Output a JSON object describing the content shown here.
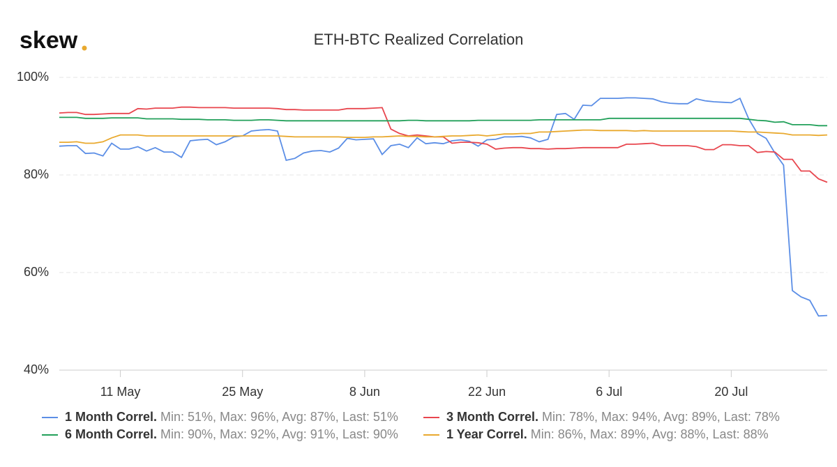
{
  "brand": "skew",
  "chart_data": {
    "type": "line",
    "title": "ETH-BTC Realized Correlation",
    "categories": [
      null,
      null,
      null,
      null,
      null,
      null,
      null,
      "11 May",
      null,
      null,
      null,
      null,
      null,
      null,
      null,
      null,
      null,
      null,
      null,
      null,
      null,
      "25 May",
      null,
      null,
      null,
      null,
      null,
      null,
      null,
      null,
      null,
      null,
      null,
      null,
      null,
      "8 Jun",
      null,
      null,
      null,
      null,
      null,
      null,
      null,
      null,
      null,
      null,
      null,
      null,
      null,
      "22 Jun",
      null,
      null,
      null,
      null,
      null,
      null,
      null,
      null,
      null,
      null,
      null,
      null,
      null,
      "6 Jul",
      null,
      null,
      null,
      null,
      null,
      null,
      null,
      null,
      null,
      null,
      null,
      null,
      null,
      "20 Jul",
      null,
      null,
      null,
      null,
      null,
      null,
      null,
      null,
      null,
      null,
      null
    ],
    "ylim": [
      40,
      100
    ],
    "yticks": [
      {
        "value": 40,
        "label": "40%"
      },
      {
        "value": 60,
        "label": "60%"
      },
      {
        "value": 80,
        "label": "80%"
      },
      {
        "value": 100,
        "label": "100%"
      }
    ],
    "grid": true,
    "series": [
      {
        "name": "1 Month Correl.",
        "legend_note": "Min: 51%, Max: 96%, Avg: 87%, Last: 51%",
        "color": "#5b8ee6",
        "values": [
          85.9,
          86,
          86,
          84.4,
          84.5,
          83.9,
          86.5,
          85.3,
          85.3,
          85.8,
          84.9,
          85.6,
          84.7,
          84.7,
          83.6,
          87,
          87.2,
          87.3,
          86.2,
          86.8,
          87.8,
          88,
          89,
          89.2,
          89.3,
          89,
          83,
          83.4,
          84.5,
          84.9,
          85,
          84.7,
          85.5,
          87.5,
          87.2,
          87.3,
          87.4,
          84.2,
          86,
          86.3,
          85.6,
          87.6,
          86.4,
          86.6,
          86.4,
          87,
          87.2,
          86.9,
          85.9,
          87.2,
          87.3,
          87.8,
          87.8,
          87.9,
          87.6,
          86.8,
          87.3,
          92.4,
          92.6,
          91.4,
          94.3,
          94.2,
          95.7,
          95.7,
          95.7,
          95.8,
          95.8,
          95.7,
          95.6,
          95,
          94.7,
          94.6,
          94.6,
          95.6,
          95.2,
          95,
          94.9,
          94.8,
          95.7,
          91.5,
          88.5,
          87.5,
          84.5,
          82,
          56.3,
          55,
          54.3,
          51.1,
          51.2
        ]
      },
      {
        "name": "3 Month Correl.",
        "legend_note": "Min: 78%, Max: 94%, Avg: 89%, Last: 78%",
        "color": "#e8464e",
        "values": [
          92.7,
          92.8,
          92.8,
          92.4,
          92.4,
          92.5,
          92.6,
          92.6,
          92.6,
          93.6,
          93.5,
          93.7,
          93.7,
          93.7,
          93.9,
          93.9,
          93.8,
          93.8,
          93.8,
          93.8,
          93.7,
          93.7,
          93.7,
          93.7,
          93.7,
          93.6,
          93.4,
          93.4,
          93.3,
          93.3,
          93.3,
          93.3,
          93.3,
          93.6,
          93.6,
          93.6,
          93.7,
          93.8,
          89.4,
          88.5,
          88,
          88.2,
          88,
          87.8,
          87.8,
          86.5,
          86.7,
          86.7,
          86.6,
          86.3,
          85.3,
          85.5,
          85.6,
          85.6,
          85.4,
          85.4,
          85.3,
          85.4,
          85.4,
          85.5,
          85.6,
          85.6,
          85.6,
          85.6,
          85.6,
          86.3,
          86.3,
          86.4,
          86.5,
          86,
          86,
          86,
          86,
          85.8,
          85.2,
          85.2,
          86.2,
          86.2,
          86,
          86,
          84.6,
          84.8,
          84.7,
          83.2,
          83.2,
          80.8,
          80.8,
          79.2,
          78.5
        ]
      },
      {
        "name": "6 Month Correl.",
        "legend_note": "Min: 90%, Max: 92%, Avg: 91%, Last: 90%",
        "color": "#22a05a",
        "values": [
          91.8,
          91.8,
          91.8,
          91.6,
          91.6,
          91.6,
          91.7,
          91.7,
          91.7,
          91.7,
          91.5,
          91.5,
          91.5,
          91.5,
          91.4,
          91.4,
          91.4,
          91.3,
          91.3,
          91.3,
          91.2,
          91.2,
          91.2,
          91.3,
          91.3,
          91.2,
          91.1,
          91.1,
          91.1,
          91.1,
          91.1,
          91.1,
          91.1,
          91.1,
          91.1,
          91.1,
          91.1,
          91.1,
          91.1,
          91.1,
          91.2,
          91.2,
          91.1,
          91.1,
          91.1,
          91.1,
          91.1,
          91.1,
          91.2,
          91.2,
          91.2,
          91.2,
          91.2,
          91.2,
          91.2,
          91.3,
          91.3,
          91.3,
          91.3,
          91.3,
          91.3,
          91.3,
          91.3,
          91.6,
          91.6,
          91.6,
          91.6,
          91.6,
          91.6,
          91.6,
          91.6,
          91.6,
          91.6,
          91.6,
          91.6,
          91.6,
          91.6,
          91.6,
          91.6,
          91.4,
          91.2,
          91.1,
          90.8,
          90.9,
          90.3,
          90.3,
          90.3,
          90.1,
          90.1
        ]
      },
      {
        "name": "1 Year Correl.",
        "legend_note": "Min: 86%, Max: 89%, Avg: 88%, Last: 88%",
        "color": "#e9a92e",
        "values": [
          86.7,
          86.7,
          86.8,
          86.5,
          86.5,
          86.8,
          87.6,
          88.2,
          88.2,
          88.2,
          88,
          88,
          88,
          88,
          88,
          88,
          88,
          88,
          88,
          88,
          88,
          88,
          88,
          88,
          88,
          88,
          87.9,
          87.8,
          87.8,
          87.8,
          87.8,
          87.8,
          87.8,
          87.7,
          87.7,
          87.7,
          87.8,
          87.8,
          87.9,
          88,
          87.9,
          87.9,
          87.8,
          87.8,
          87.9,
          88,
          88,
          88.1,
          88.2,
          88,
          88.2,
          88.4,
          88.4,
          88.5,
          88.5,
          88.8,
          88.8,
          88.9,
          89,
          89.1,
          89.2,
          89.2,
          89.1,
          89.1,
          89.1,
          89.1,
          89,
          89.1,
          89,
          89,
          89,
          89,
          89,
          89,
          89,
          89,
          89,
          89,
          88.9,
          88.8,
          88.8,
          88.7,
          88.6,
          88.5,
          88.2,
          88.2,
          88.2,
          88.1,
          88.2
        ]
      }
    ]
  }
}
